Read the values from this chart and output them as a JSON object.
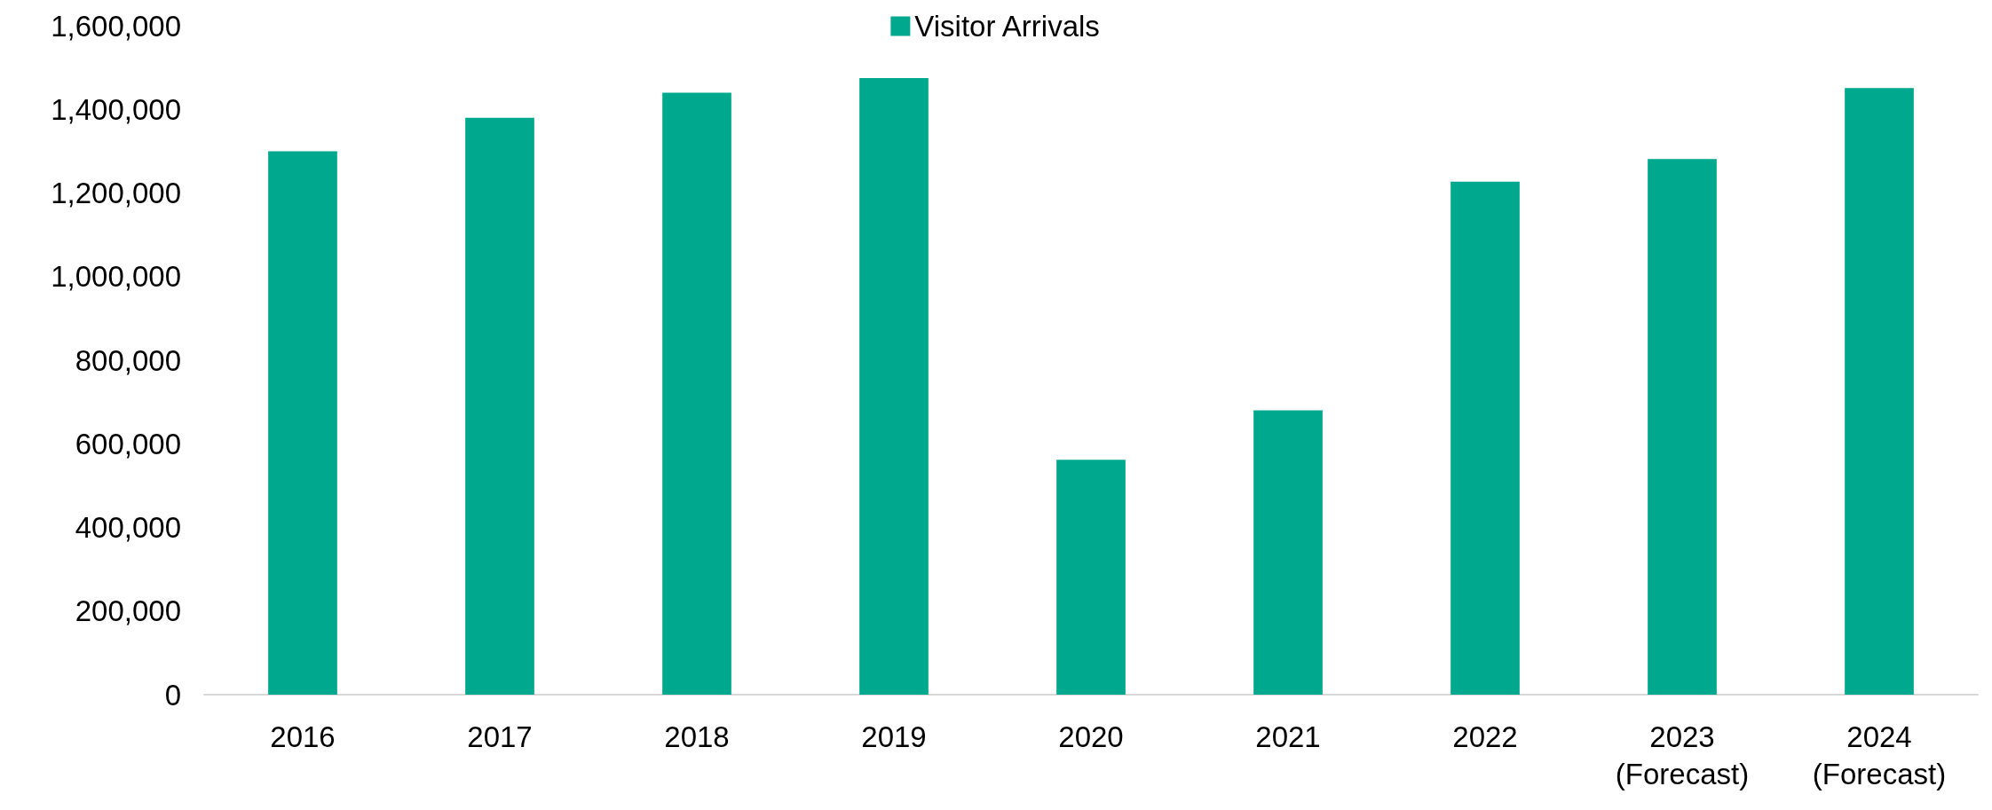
{
  "chart_data": {
    "type": "bar",
    "categories": [
      "2016",
      "2017",
      "2018",
      "2019",
      "2020",
      "2021",
      "2022",
      "2023\n(Forecast)",
      "2024\n(Forecast)"
    ],
    "series": [
      {
        "name": "Visitor Arrivals",
        "color": "#00a88e",
        "values": [
          1300000,
          1380000,
          1440000,
          1475000,
          562000,
          680000,
          1227000,
          1281000,
          1451000
        ]
      }
    ],
    "ylim": [
      0,
      1600000
    ],
    "yticks": [
      0,
      {
        "value": 200000,
        "label": "200,000"
      },
      {
        "value": 400000,
        "label": "400,000"
      },
      {
        "value": 600000,
        "label": "600,000"
      },
      {
        "value": 800000,
        "label": "800,000"
      },
      {
        "value": 1000000,
        "label": "1,000,000"
      },
      {
        "value": 1200000,
        "label": "1,200,000"
      },
      {
        "value": 1400000,
        "label": "1,400,000"
      },
      {
        "value": 1600000,
        "label": "1,600,000"
      }
    ],
    "grid": false,
    "legend": "top"
  }
}
